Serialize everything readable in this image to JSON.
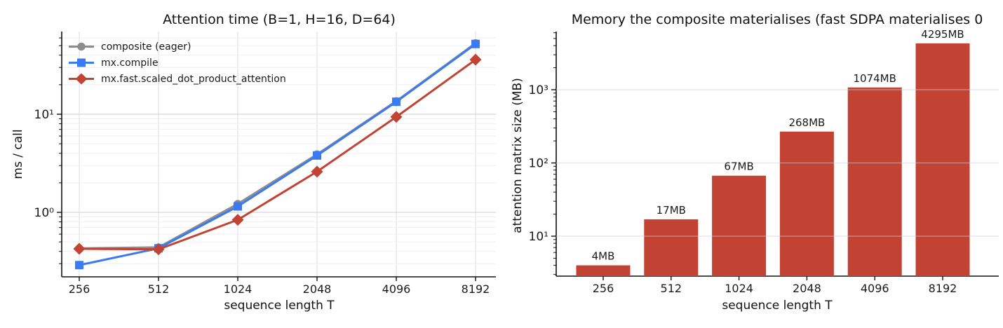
{
  "chart_data": [
    {
      "type": "line",
      "title": "Attention time (B=1, H=16, D=64)",
      "xlabel": "sequence length T",
      "ylabel": "ms / call",
      "x_scale": "log2",
      "y_scale": "log10",
      "categories": [
        256,
        512,
        1024,
        2048,
        4096,
        8192
      ],
      "x_tick_labels": [
        "256",
        "512",
        "1024",
        "2048",
        "4096",
        "8192"
      ],
      "y_ticks": [
        1,
        10
      ],
      "y_tick_labels": [
        "10⁰",
        "10¹"
      ],
      "ylim": [
        0.213,
        69.6
      ],
      "grid": {
        "vertical": true,
        "horizontal_major": true,
        "horizontal_minor": true
      },
      "legend_position": "upper left",
      "series": [
        {
          "name": "composite (eager)",
          "color": "#8c8c8c",
          "marker": "circle",
          "values": [
            0.43,
            0.44,
            1.22,
            3.9,
            13.6,
            53
          ]
        },
        {
          "name": "mx.compile",
          "color": "#3b7af5",
          "marker": "square",
          "values": [
            0.29,
            0.43,
            1.15,
            3.8,
            13.4,
            52
          ]
        },
        {
          "name": "mx.fast.scaled_dot_product_attention",
          "color": "#c24334",
          "marker": "diamond",
          "values": [
            0.425,
            0.42,
            0.84,
            2.6,
            9.4,
            36
          ]
        }
      ]
    },
    {
      "type": "bar",
      "title": "Memory the composite materialises (fast SDPA materialises 0",
      "xlabel": "sequence length T",
      "ylabel": "attention matrix size (MB)",
      "y_scale": "log10",
      "categories": [
        256,
        512,
        1024,
        2048,
        4096,
        8192
      ],
      "x_tick_labels": [
        "256",
        "512",
        "1024",
        "2048",
        "4096",
        "8192"
      ],
      "y_ticks": [
        10,
        100,
        1000
      ],
      "y_tick_labels": [
        "10¹",
        "10²",
        "10³"
      ],
      "ylim": [
        2.85,
        6224
      ],
      "values": [
        4,
        17,
        67,
        268,
        1074,
        4295
      ],
      "bar_labels": [
        "4MB",
        "17MB",
        "67MB",
        "268MB",
        "1074MB",
        "4295MB"
      ],
      "bar_color": "#c24334",
      "grid": {
        "vertical": false,
        "horizontal_major": true,
        "horizontal_minor": false
      }
    }
  ]
}
